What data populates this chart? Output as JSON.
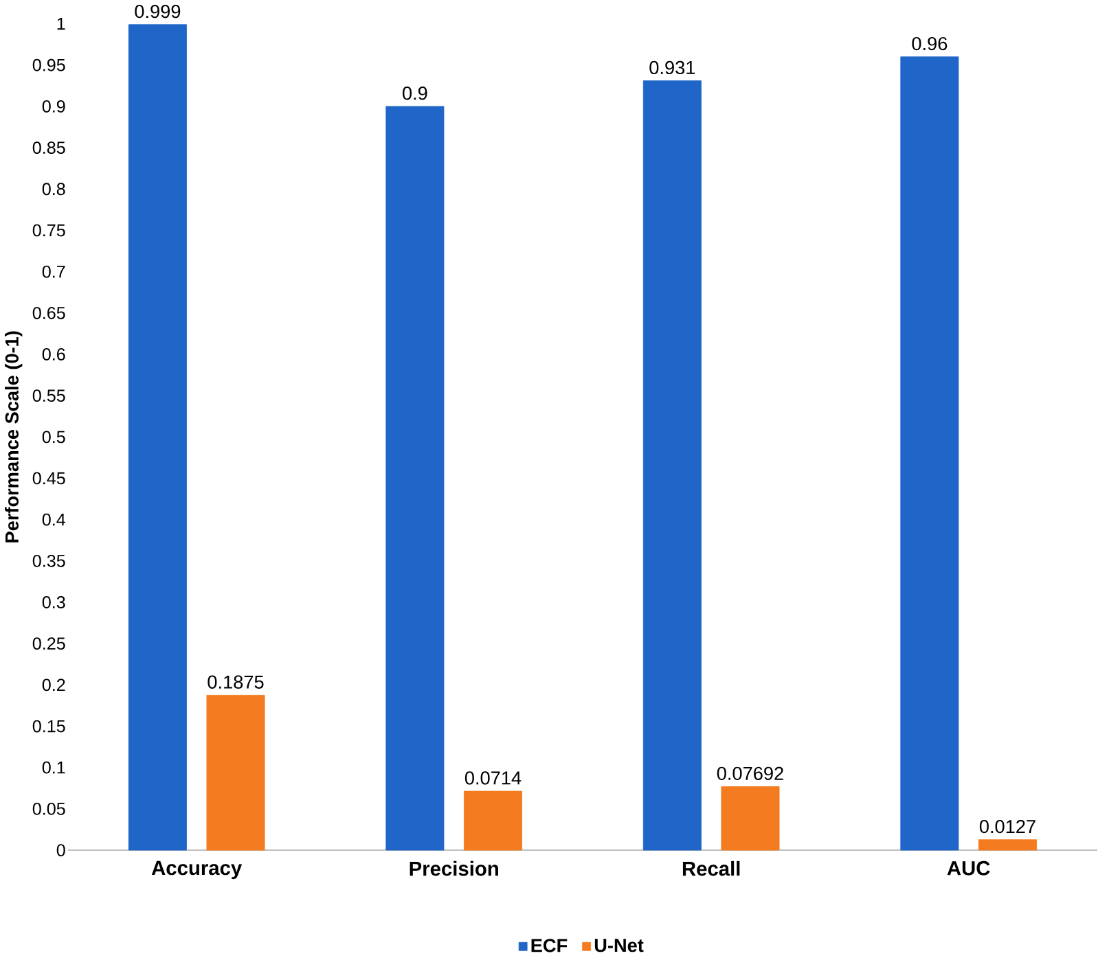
{
  "chart_data": {
    "type": "bar",
    "ylabel": "Performance Scale (0-1)",
    "categories": [
      "Accuracy",
      "Precision",
      "Recall",
      "AUC"
    ],
    "series": [
      {
        "name": "ECF",
        "color": "#1f66c8",
        "values": [
          0.999,
          0.9,
          0.931,
          0.96
        ]
      },
      {
        "name": "U-Net",
        "color": "#f47b20",
        "values": [
          0.1875,
          0.0714,
          0.07692,
          0.0127
        ]
      }
    ],
    "ylim": [
      0,
      1
    ],
    "yticks": [
      0,
      0.05,
      0.1,
      0.15,
      0.2,
      0.25,
      0.3,
      0.35,
      0.4,
      0.45,
      0.5,
      0.55,
      0.6,
      0.65,
      0.7,
      0.75,
      0.8,
      0.85,
      0.9,
      0.95,
      1
    ],
    "data_labels": true,
    "legend": "bottom"
  }
}
